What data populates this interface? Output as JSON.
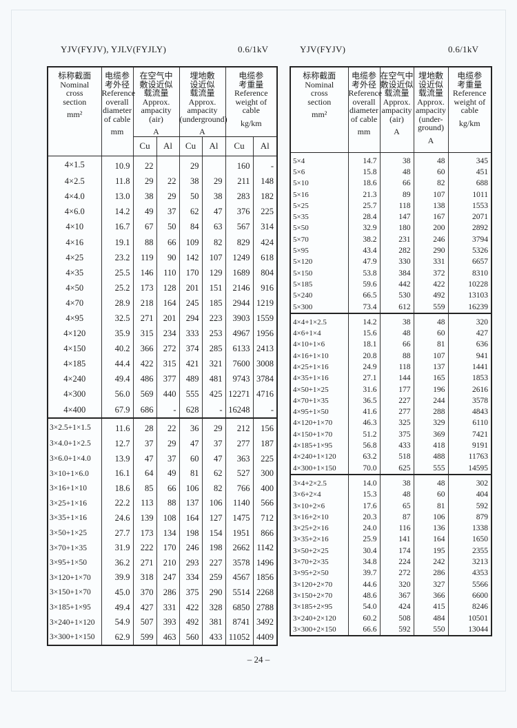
{
  "left": {
    "title": "YJV(FYJV), YJLV(FYJLY)",
    "voltage": "0.6/1kV",
    "header": {
      "section": [
        "标称截面",
        "Nominal",
        "cross",
        "section",
        "mm²"
      ],
      "diameter": [
        "电缆参",
        "考外径",
        "Reference",
        "overall",
        "diameter",
        "of cable",
        "mm"
      ],
      "air": [
        "在空气中",
        "敷设近似",
        "载流量",
        "Approx.",
        "ampacity",
        "(air)",
        "A"
      ],
      "underground": [
        "埋地敷",
        "设近似",
        "载流量",
        "Approx.",
        "ampacity",
        "(underground)",
        "A"
      ],
      "weight": [
        "电缆参",
        "考重量",
        "Reference",
        "weight of",
        "cable",
        "kg/km"
      ],
      "sub": [
        "Cu",
        "Al",
        "Cu",
        "Al",
        "Cu",
        "Al"
      ]
    },
    "groups": [
      [
        [
          "4×1.5",
          "10.9",
          "22",
          "",
          "29",
          "",
          "160",
          "-"
        ],
        [
          "4×2.5",
          "11.8",
          "29",
          "22",
          "38",
          "29",
          "211",
          "148"
        ],
        [
          "4×4.0",
          "13.0",
          "38",
          "29",
          "50",
          "38",
          "283",
          "182"
        ],
        [
          "4×6.0",
          "14.2",
          "49",
          "37",
          "62",
          "47",
          "376",
          "225"
        ],
        [
          "4×10",
          "16.7",
          "67",
          "50",
          "84",
          "63",
          "567",
          "314"
        ],
        [
          "4×16",
          "19.1",
          "88",
          "66",
          "109",
          "82",
          "829",
          "424"
        ],
        [
          "4×25",
          "23.2",
          "119",
          "90",
          "142",
          "107",
          "1249",
          "618"
        ],
        [
          "4×35",
          "25.5",
          "146",
          "110",
          "170",
          "129",
          "1689",
          "804"
        ],
        [
          "4×50",
          "25.2",
          "173",
          "128",
          "201",
          "151",
          "2146",
          "916"
        ],
        [
          "4×70",
          "28.9",
          "218",
          "164",
          "245",
          "185",
          "2944",
          "1219"
        ],
        [
          "4×95",
          "32.5",
          "271",
          "201",
          "294",
          "223",
          "3903",
          "1559"
        ],
        [
          "4×120",
          "35.9",
          "315",
          "234",
          "333",
          "253",
          "4967",
          "1956"
        ],
        [
          "4×150",
          "40.2",
          "366",
          "272",
          "374",
          "285",
          "6133",
          "2413"
        ],
        [
          "4×185",
          "44.4",
          "422",
          "315",
          "421",
          "321",
          "7600",
          "3008"
        ],
        [
          "4×240",
          "49.4",
          "486",
          "377",
          "489",
          "481",
          "9743",
          "3784"
        ],
        [
          "4×300",
          "56.0",
          "569",
          "440",
          "555",
          "425",
          "12271",
          "4716"
        ],
        [
          "4×400",
          "67.9",
          "686",
          "-",
          "628",
          "-",
          "16248",
          "-"
        ]
      ],
      [
        [
          "3×2.5+1×1.5",
          "11.6",
          "28",
          "22",
          "36",
          "29",
          "212",
          "156"
        ],
        [
          "3×4.0+1×2.5",
          "12.7",
          "37",
          "29",
          "47",
          "37",
          "277",
          "187"
        ],
        [
          "3×6.0+1×4.0",
          "13.9",
          "47",
          "37",
          "60",
          "47",
          "363",
          "225"
        ],
        [
          "3×10+1×6.0",
          "16.1",
          "64",
          "49",
          "81",
          "62",
          "527",
          "300"
        ],
        [
          "3×16+1×10",
          "18.6",
          "85",
          "66",
          "106",
          "82",
          "766",
          "400"
        ],
        [
          "3×25+1×16",
          "22.2",
          "113",
          "88",
          "137",
          "106",
          "1140",
          "566"
        ],
        [
          "3×35+1×16",
          "24.6",
          "139",
          "108",
          "164",
          "127",
          "1475",
          "712"
        ],
        [
          "3×50+1×25",
          "27.7",
          "173",
          "134",
          "198",
          "154",
          "1951",
          "866"
        ],
        [
          "3×70+1×35",
          "31.9",
          "222",
          "170",
          "246",
          "198",
          "2662",
          "1142"
        ],
        [
          "3×95+1×50",
          "36.2",
          "271",
          "210",
          "293",
          "227",
          "3578",
          "1496"
        ],
        [
          "3×120+1×70",
          "39.9",
          "318",
          "247",
          "334",
          "259",
          "4567",
          "1856"
        ],
        [
          "3×150+1×70",
          "45.0",
          "370",
          "286",
          "375",
          "290",
          "5514",
          "2268"
        ],
        [
          "3×185+1×95",
          "49.4",
          "427",
          "331",
          "422",
          "328",
          "6850",
          "2788"
        ],
        [
          "3×240+1×120",
          "54.9",
          "507",
          "393",
          "492",
          "381",
          "8741",
          "3492"
        ],
        [
          "3×300+1×150",
          "62.9",
          "599",
          "463",
          "560",
          "433",
          "11052",
          "4409"
        ]
      ]
    ]
  },
  "right": {
    "title": "YJV(FYJV)",
    "voltage": "0.6/1kV",
    "header": {
      "section": [
        "标称截面",
        "Nominal",
        "cross",
        "section",
        "mm²"
      ],
      "diameter": [
        "电缆参",
        "考外径",
        "Reference",
        "overall",
        "diameter",
        "of cable",
        "mm"
      ],
      "air": [
        "在空气中",
        "敷设近似",
        "载流量",
        "Approx.",
        "ampacity",
        "(air)",
        "A"
      ],
      "underground": [
        "埋地敷",
        "设近似",
        "载流量",
        "Approx.",
        "ampacity",
        "(under-",
        "ground)",
        "A"
      ],
      "weight": [
        "电缆参",
        "考重量",
        "Reference",
        "weight of",
        "cable",
        "kg/km"
      ]
    },
    "groups": [
      [
        [
          "5×4",
          "14.7",
          "38",
          "48",
          "345"
        ],
        [
          "5×6",
          "15.8",
          "48",
          "60",
          "451"
        ],
        [
          "5×10",
          "18.6",
          "66",
          "82",
          "688"
        ],
        [
          "5×16",
          "21.3",
          "89",
          "107",
          "1011"
        ],
        [
          "5×25",
          "25.7",
          "118",
          "138",
          "1553"
        ],
        [
          "5×35",
          "28.4",
          "147",
          "167",
          "2071"
        ],
        [
          "5×50",
          "32.9",
          "180",
          "200",
          "2892"
        ],
        [
          "5×70",
          "38.2",
          "231",
          "246",
          "3794"
        ],
        [
          "5×95",
          "43.4",
          "282",
          "290",
          "5326"
        ],
        [
          "5×120",
          "47.9",
          "330",
          "331",
          "6657"
        ],
        [
          "5×150",
          "53.8",
          "384",
          "372",
          "8310"
        ],
        [
          "5×185",
          "59.6",
          "442",
          "422",
          "10228"
        ],
        [
          "5×240",
          "66.5",
          "530",
          "492",
          "13103"
        ],
        [
          "5×300",
          "73.4",
          "612",
          "559",
          "16239"
        ]
      ],
      [
        [
          "4×4+1×2.5",
          "14.2",
          "38",
          "48",
          "320"
        ],
        [
          "4×6+1×4",
          "15.6",
          "48",
          "60",
          "427"
        ],
        [
          "4×10+1×6",
          "18.1",
          "66",
          "81",
          "636"
        ],
        [
          "4×16+1×10",
          "20.8",
          "88",
          "107",
          "941"
        ],
        [
          "4×25+1×16",
          "24.9",
          "118",
          "137",
          "1441"
        ],
        [
          "4×35+1×16",
          "27.1",
          "144",
          "165",
          "1853"
        ],
        [
          "4×50+1×25",
          "31.6",
          "177",
          "196",
          "2616"
        ],
        [
          "4×70+1×35",
          "36.5",
          "227",
          "244",
          "3578"
        ],
        [
          "4×95+1×50",
          "41.6",
          "277",
          "288",
          "4843"
        ],
        [
          "4×120+1×70",
          "46.3",
          "325",
          "329",
          "6110"
        ],
        [
          "4×150+1×70",
          "51.2",
          "375",
          "369",
          "7421"
        ],
        [
          "4×185+1×95",
          "56.8",
          "433",
          "418",
          "9191"
        ],
        [
          "4×240+1×120",
          "63.2",
          "518",
          "488",
          "11763"
        ],
        [
          "4×300+1×150",
          "70.0",
          "625",
          "555",
          "14595"
        ]
      ],
      [
        [
          "3×4+2×2.5",
          "14.0",
          "38",
          "48",
          "302"
        ],
        [
          "3×6+2×4",
          "15.3",
          "48",
          "60",
          "404"
        ],
        [
          "3×10+2×6",
          "17.6",
          "65",
          "81",
          "592"
        ],
        [
          "3×16+2×10",
          "20.3",
          "87",
          "106",
          "879"
        ],
        [
          "3×25+2×16",
          "24.0",
          "116",
          "136",
          "1338"
        ],
        [
          "3×35+2×16",
          "25.9",
          "141",
          "164",
          "1650"
        ],
        [
          "3×50+2×25",
          "30.4",
          "174",
          "195",
          "2355"
        ],
        [
          "3×70+2×35",
          "34.8",
          "224",
          "242",
          "3213"
        ],
        [
          "3×95+2×50",
          "39.7",
          "272",
          "286",
          "4353"
        ],
        [
          "3×120+2×70",
          "44.6",
          "320",
          "327",
          "5566"
        ],
        [
          "3×150+2×70",
          "48.6",
          "367",
          "366",
          "6600"
        ],
        [
          "3×185+2×95",
          "54.0",
          "424",
          "415",
          "8246"
        ],
        [
          "3×240+2×120",
          "60.2",
          "508",
          "484",
          "10501"
        ],
        [
          "3×300+2×150",
          "66.6",
          "592",
          "550",
          "13044"
        ]
      ]
    ]
  },
  "page_number": "– 24 –"
}
